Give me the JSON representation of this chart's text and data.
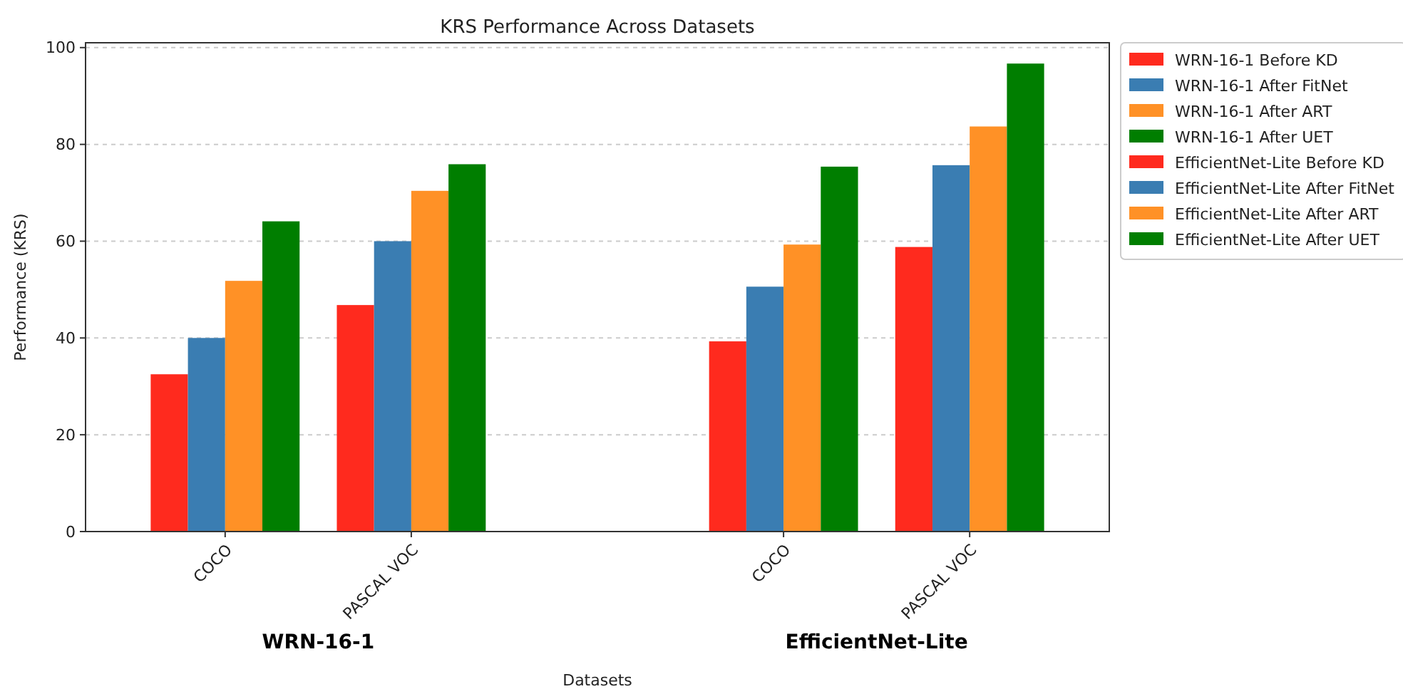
{
  "chart_data": {
    "type": "bar",
    "title": "KRS Performance Across Datasets",
    "xlabel": "Datasets",
    "ylabel": "Performance (KRS)",
    "categories": [
      "COCO",
      "PASCAL VOC",
      null,
      "COCO",
      "PASCAL VOC"
    ],
    "series": [
      {
        "name": "WRN-16-1 Before KD",
        "color": "#ff2a1e",
        "values": [
          32.5,
          46.8,
          null,
          null,
          null
        ]
      },
      {
        "name": "WRN-16-1 After FitNet",
        "color": "#3a7db2",
        "values": [
          40.0,
          60.0,
          null,
          null,
          null
        ]
      },
      {
        "name": "WRN-16-1 After ART",
        "color": "#ff9126",
        "values": [
          51.8,
          70.4,
          null,
          null,
          null
        ]
      },
      {
        "name": "WRN-16-1 After UET",
        "color": "#007e00",
        "values": [
          64.1,
          75.9,
          null,
          null,
          null
        ]
      },
      {
        "name": "EfficientNet-Lite Before KD",
        "color": "#ff2a1e",
        "values": [
          null,
          null,
          null,
          39.3,
          58.8
        ]
      },
      {
        "name": "EfficientNet-Lite After FitNet",
        "color": "#3a7db2",
        "values": [
          null,
          null,
          null,
          50.6,
          75.7
        ]
      },
      {
        "name": "EfficientNet-Lite After ART",
        "color": "#ff9126",
        "values": [
          null,
          null,
          null,
          59.3,
          83.7
        ]
      },
      {
        "name": "EfficientNet-Lite After UET",
        "color": "#007e00",
        "values": [
          null,
          null,
          null,
          75.4,
          96.7
        ]
      }
    ],
    "annotations": [
      "WRN-16-1",
      "EfficientNet-Lite"
    ],
    "ylim": [
      0,
      101
    ],
    "yticks": [
      0,
      20,
      40,
      60,
      80,
      100
    ],
    "grid": "y",
    "legend": "right"
  }
}
